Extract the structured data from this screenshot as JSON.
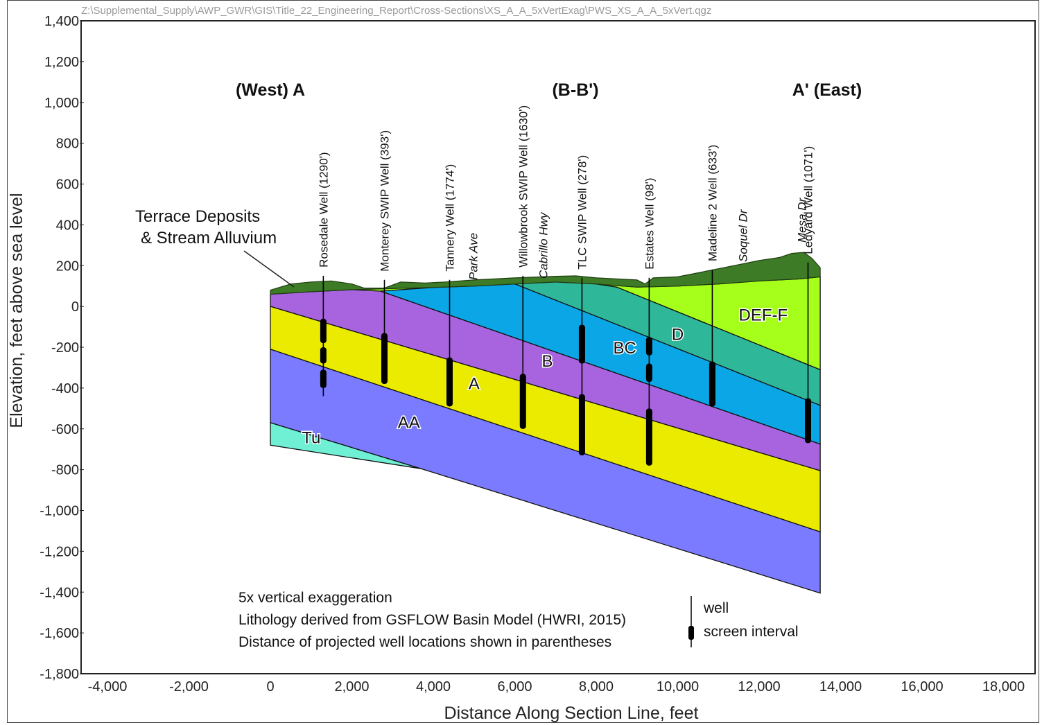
{
  "file_path": "Z:\\Supplemental_Supply\\AWP_GWR\\GIS\\Title_22_Engineering_Report\\Cross-Sections\\XS_A_A_5xVertExag\\PWS_XS_A_A_5xVert.qgz",
  "section_labels": {
    "west": "(West) A",
    "middle": "(B-B')",
    "east": "A'  (East)"
  },
  "callout": {
    "line1": "Terrace Deposits",
    "line2": "& Stream Alluvium"
  },
  "notes": [
    "5x vertical exaggeration",
    "Lithology derived from GSFLOW Basin Model (HWRI, 2015)",
    "Distance of projected well locations shown in parentheses"
  ],
  "legend": {
    "well": "well",
    "screen": "screen interval"
  },
  "colors": {
    "terrace": "#3e7b26",
    "DEF-F": "#a6ff1a",
    "D": "#2fb79a",
    "BC": "#0aa6e6",
    "B": "#a864de",
    "A": "#ebeb00",
    "AA": "#7b7bff",
    "Tu": "#6ff0d4",
    "well": "#000000"
  },
  "chart_data": {
    "type": "cross-section",
    "xlabel": "Distance Along Section Line, feet",
    "ylabel": "Elevation, feet above sea level",
    "xlim": [
      -4500,
      18200
    ],
    "ylim": [
      -1800,
      1400
    ],
    "xticks": [
      -4000,
      -2000,
      0,
      2000,
      4000,
      6000,
      8000,
      10000,
      12000,
      14000,
      16000,
      18000
    ],
    "yticks": [
      1400,
      1200,
      1000,
      800,
      600,
      400,
      200,
      0,
      -200,
      -400,
      -600,
      -800,
      -1000,
      -1200,
      -1400,
      -1600,
      -1800
    ],
    "surface": [
      [
        0,
        80
      ],
      [
        500,
        110
      ],
      [
        1000,
        120
      ],
      [
        1500,
        125
      ],
      [
        2000,
        110
      ],
      [
        2300,
        90
      ],
      [
        2800,
        90
      ],
      [
        3200,
        120
      ],
      [
        3800,
        115
      ],
      [
        4300,
        120
      ],
      [
        5000,
        130
      ],
      [
        6000,
        140
      ],
      [
        7000,
        148
      ],
      [
        7500,
        150
      ],
      [
        8000,
        140
      ],
      [
        8500,
        135
      ],
      [
        9000,
        130
      ],
      [
        9200,
        110
      ],
      [
        9400,
        140
      ],
      [
        10000,
        145
      ],
      [
        10500,
        165
      ],
      [
        11000,
        185
      ],
      [
        11500,
        205
      ],
      [
        12000,
        225
      ],
      [
        12500,
        240
      ],
      [
        12800,
        260
      ],
      [
        13100,
        265
      ],
      [
        13300,
        235
      ],
      [
        13500,
        190
      ],
      [
        13500,
        145
      ]
    ],
    "terrace_base": [
      [
        0,
        60
      ],
      [
        1000,
        72
      ],
      [
        2000,
        82
      ],
      [
        3000,
        88
      ],
      [
        4000,
        93
      ],
      [
        5000,
        100
      ],
      [
        6000,
        110
      ],
      [
        7000,
        120
      ],
      [
        8000,
        110
      ],
      [
        9000,
        95
      ],
      [
        10000,
        100
      ],
      [
        11000,
        110
      ],
      [
        12000,
        125
      ],
      [
        13000,
        135
      ],
      [
        13500,
        145
      ]
    ],
    "units": [
      {
        "name": "DEF-F",
        "top": [
          [
            0,
            60
          ],
          [
            8500,
            95
          ],
          [
            13500,
            145
          ]
        ],
        "base": [
          [
            8500,
            95
          ],
          [
            13500,
            -310
          ]
        ]
      },
      {
        "name": "D",
        "top": [
          [
            6000,
            110
          ],
          [
            8500,
            95
          ]
        ],
        "base": [
          [
            6000,
            110
          ],
          [
            13500,
            -485
          ]
        ]
      },
      {
        "name": "BC",
        "top": [
          [
            2700,
            75
          ],
          [
            6000,
            110
          ]
        ],
        "base": [
          [
            2700,
            75
          ],
          [
            13500,
            -675
          ]
        ]
      },
      {
        "name": "B",
        "top": [
          [
            0,
            60
          ],
          [
            2700,
            75
          ]
        ],
        "base": [
          [
            0,
            0
          ],
          [
            13500,
            -805
          ]
        ]
      },
      {
        "name": "A",
        "top": [
          [
            0,
            0
          ]
        ],
        "base": [
          [
            0,
            -210
          ],
          [
            13500,
            -1105
          ]
        ]
      },
      {
        "name": "AA",
        "top": [
          [
            0,
            -210
          ]
        ],
        "base": [
          [
            0,
            -570
          ],
          [
            13500,
            -1405
          ]
        ]
      },
      {
        "name": "Tu",
        "top": [
          [
            0,
            -570
          ],
          [
            3700,
            -795
          ]
        ],
        "base": [
          [
            0,
            -680
          ],
          [
            3700,
            -795
          ]
        ]
      }
    ],
    "unit_labels": [
      {
        "name": "DEF-F",
        "x": 12100,
        "y": -70
      },
      {
        "name": "D",
        "x": 10000,
        "y": -165
      },
      {
        "name": "BC",
        "x": 8700,
        "y": -230
      },
      {
        "name": "B",
        "x": 6800,
        "y": -295
      },
      {
        "name": "A",
        "x": 5000,
        "y": -405
      },
      {
        "name": "AA",
        "x": 3400,
        "y": -595
      },
      {
        "name": "Tu",
        "x": 1000,
        "y": -670
      }
    ],
    "wells": [
      {
        "name": "Rosedale Well (1290')",
        "x": 1300,
        "top": 130,
        "bottom": -440,
        "screens": [
          [
            -60,
            -180
          ],
          [
            -200,
            -280
          ],
          [
            -310,
            -400
          ]
        ]
      },
      {
        "name": "Monterey SWIP Well (393')",
        "x": 2800,
        "top": 110,
        "bottom": -380,
        "screens": [
          [
            -130,
            -380
          ]
        ]
      },
      {
        "name": "Tannery Well (1774')",
        "x": 4400,
        "top": 110,
        "bottom": -490,
        "screens": [
          [
            -250,
            -490
          ]
        ]
      },
      {
        "name": "Willowbrook SWIP Well (1630')",
        "x": 6200,
        "top": 130,
        "bottom": -600,
        "screens": [
          [
            -330,
            -600
          ]
        ]
      },
      {
        "name": "TLC SWIP Well (278')",
        "x": 7650,
        "top": 120,
        "bottom": -730,
        "screens": [
          [
            -90,
            -280
          ],
          [
            -430,
            -730
          ]
        ]
      },
      {
        "name": "Estates Well (98')",
        "x": 9300,
        "top": 120,
        "bottom": -780,
        "screens": [
          [
            -150,
            -240
          ],
          [
            -280,
            -370
          ],
          [
            -500,
            -780
          ]
        ]
      },
      {
        "name": "Madeline 2 Well (633')",
        "x": 10850,
        "top": 160,
        "bottom": -490,
        "screens": [
          [
            -270,
            -490
          ]
        ]
      },
      {
        "name": "Ledyard Well (1071')",
        "x": 13200,
        "top": 195,
        "bottom": -670,
        "screens": [
          [
            -450,
            -670
          ]
        ]
      }
    ],
    "roads": [
      {
        "name": "Park Ave",
        "x": 4980
      },
      {
        "name": "Cabrillo Hwy",
        "x": 6700
      },
      {
        "name": "Soquel Dr",
        "x": 11600
      },
      {
        "name": "Mesa Dr",
        "x": 13050
      }
    ]
  }
}
